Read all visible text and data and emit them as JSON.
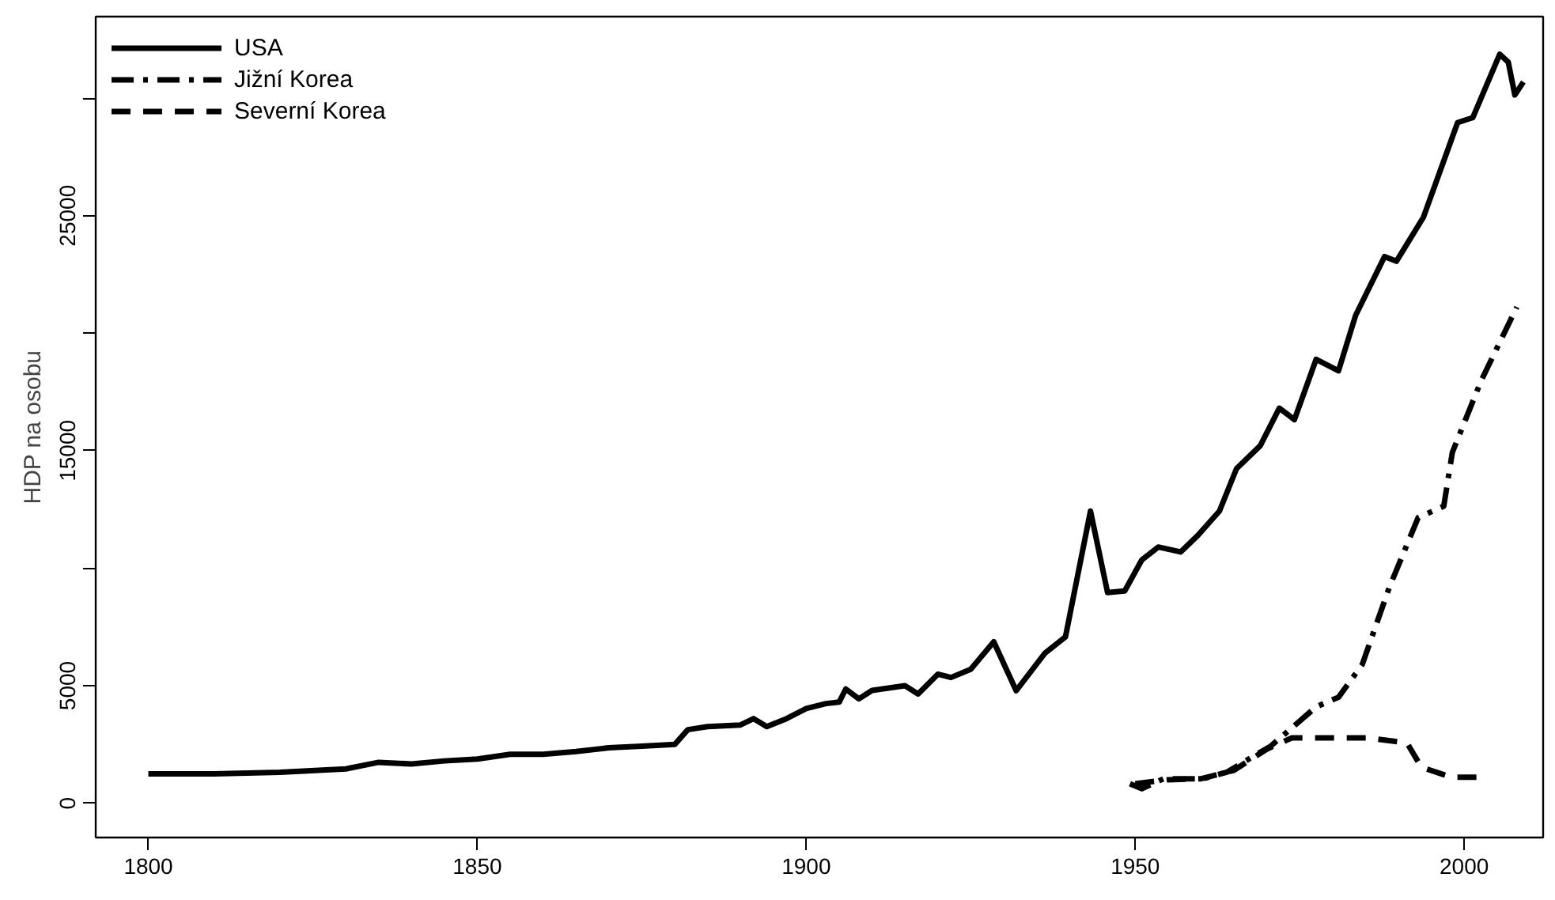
{
  "chart_data": {
    "type": "line",
    "ylabel": "HDP na osobu",
    "xlim": [
      1792,
      2012
    ],
    "ylim": [
      -1460,
      33470
    ],
    "xticks": [
      1800,
      1850,
      1900,
      1950,
      2000
    ],
    "yticks": [
      0,
      5000,
      {
        "value": 10000,
        "label": null
      },
      15000,
      {
        "value": 20000,
        "label": null
      },
      25000,
      {
        "value": 30000,
        "label": null
      }
    ],
    "grid": false,
    "legend": "top left",
    "series": [
      {
        "name": "USA",
        "color": "#000000",
        "line_style": "solid",
        "x": [
          1800,
          1810,
          1820,
          1830,
          1835,
          1840,
          1845,
          1850,
          1855,
          1860,
          1865,
          1870,
          1875,
          1880,
          1882,
          1885,
          1890,
          1892,
          1894,
          1897,
          1900,
          1903,
          1905,
          1906,
          1908,
          1910,
          1915,
          1917,
          1920,
          1922,
          1925,
          1928.5,
          1931.9,
          1936.3,
          1939.4,
          1943.2,
          1945.8,
          1948.4,
          1951,
          1953.5,
          1956.9,
          1959.5,
          1962.8,
          1965.4,
          1969,
          1971.9,
          1974.2,
          1977.5,
          1980.9,
          1983.5,
          1987.9,
          1989.7,
          1993.8,
          1999,
          2001.3,
          2005.4,
          2006.7,
          2007.7,
          2009
        ],
        "values": [
          1250,
          1250,
          1320,
          1460,
          1740,
          1670,
          1800,
          1880,
          2080,
          2080,
          2200,
          2360,
          2430,
          2500,
          3130,
          3260,
          3330,
          3600,
          3260,
          3600,
          4030,
          4240,
          4300,
          4860,
          4440,
          4800,
          5000,
          4650,
          5490,
          5350,
          5700,
          6870,
          4790,
          6390,
          7080,
          12430,
          8960,
          9030,
          10350,
          10900,
          10690,
          11390,
          12430,
          14240,
          15210,
          16810,
          16320,
          18890,
          18400,
          20760,
          23260,
          23060,
          24930,
          28960,
          29170,
          31870,
          31530,
          30140,
          30690
        ]
      },
      {
        "name": "Jižní Korea",
        "color": "#000000",
        "line_style": "dashdot",
        "x": [
          1949.2,
          1951,
          1954.3,
          1960.3,
          1963.9,
          1970.6,
          1977.5,
          1980.9,
          1984.5,
          1988.6,
          1993,
          1996.9,
          1998.2,
          2002.6,
          2008
        ],
        "values": [
          830,
          620,
          1040,
          1040,
          1320,
          2430,
          4100,
          4510,
          5900,
          9170,
          12150,
          12640,
          14930,
          17990,
          21110
        ]
      },
      {
        "name": "Severní Korea",
        "color": "#000000",
        "line_style": "dashed",
        "x": [
          1950,
          1955,
          1960,
          1965,
          1970,
          1973.8,
          1977,
          1981,
          1985.2,
          1991.3,
          1993.5,
          1998,
          2002
        ],
        "values": [
          830,
          1000,
          1040,
          1400,
          2300,
          2780,
          2780,
          2780,
          2780,
          2570,
          1530,
          1110,
          1110
        ]
      }
    ]
  }
}
